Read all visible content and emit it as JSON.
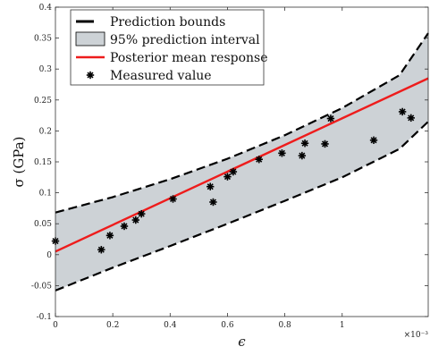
{
  "chart_data": {
    "type": "line",
    "title": "",
    "xlabel": "ϵ",
    "ylabel": "σ (GPa)",
    "x_exponent_label": "×10⁻³",
    "xlim": [
      0,
      1.3
    ],
    "ylim": [
      -0.1,
      0.4
    ],
    "x_ticks": [
      0,
      0.2,
      0.4,
      0.6,
      0.8,
      1
    ],
    "x_tick_labels": [
      "0",
      "0.2",
      "0.4",
      "0.6",
      "0.8",
      "1"
    ],
    "y_ticks": [
      -0.1,
      -0.05,
      0,
      0.05,
      0.1,
      0.15,
      0.2,
      0.25,
      0.3,
      0.35,
      0.4
    ],
    "y_tick_labels": [
      "-0.1",
      "-0.05",
      "0",
      "0.05",
      "0.1",
      "0.15",
      "0.2",
      "0.25",
      "0.3",
      "0.35",
      "0.4"
    ],
    "grid": false,
    "legend_position": "top-left",
    "series": [
      {
        "name": "Prediction bounds",
        "style": "dashed-black",
        "upper": {
          "x": [
            0,
            0.2,
            0.4,
            0.6,
            0.8,
            1.0,
            1.2,
            1.3
          ],
          "y": [
            0.068,
            0.093,
            0.122,
            0.155,
            0.193,
            0.237,
            0.29,
            0.358
          ]
        },
        "lower": {
          "x": [
            0,
            0.2,
            0.4,
            0.6,
            0.8,
            1.0,
            1.2,
            1.3
          ],
          "y": [
            -0.058,
            -0.021,
            0.014,
            0.05,
            0.087,
            0.125,
            0.171,
            0.215
          ]
        }
      },
      {
        "name": "95% prediction interval",
        "style": "filled-gray"
      },
      {
        "name": "Posterior mean response",
        "style": "solid-red",
        "x": [
          0,
          1.3
        ],
        "y": [
          0.005,
          0.285
        ]
      },
      {
        "name": "Measured value",
        "style": "asterisk-marker",
        "x": [
          0.0,
          0.16,
          0.19,
          0.24,
          0.28,
          0.3,
          0.41,
          0.54,
          0.55,
          0.6,
          0.62,
          0.71,
          0.79,
          0.86,
          0.87,
          0.94,
          0.96,
          1.11,
          1.21,
          1.24
        ],
        "y": [
          0.022,
          0.008,
          0.031,
          0.046,
          0.056,
          0.066,
          0.09,
          0.11,
          0.085,
          0.126,
          0.134,
          0.154,
          0.164,
          0.16,
          0.18,
          0.179,
          0.22,
          0.185,
          0.231,
          0.221
        ]
      }
    ]
  },
  "colors": {
    "band": "#cdd2d6",
    "bound": "#000000",
    "mean": "#ee1c1c",
    "marker": "#000000",
    "axis": "#333333"
  }
}
